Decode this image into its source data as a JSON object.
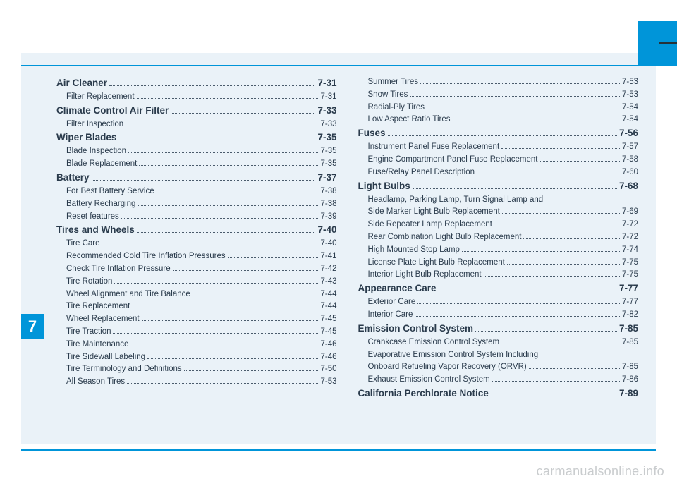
{
  "chapter_number": "7",
  "watermark": "carmanualsonline.info",
  "colors": {
    "accent": "#0095d9",
    "page_bg": "#eaf2f8",
    "text": "#2a3b4c",
    "watermark": "#c9ccce"
  },
  "columns": [
    [
      {
        "type": "section",
        "label": "Air Cleaner",
        "page": "7-31"
      },
      {
        "type": "sub",
        "label": "Filter Replacement",
        "page": "7-31"
      },
      {
        "type": "section",
        "label": "Climate Control Air Filter",
        "page": "7-33"
      },
      {
        "type": "sub",
        "label": "Filter Inspection",
        "page": "7-33"
      },
      {
        "type": "section",
        "label": "Wiper Blades",
        "page": "7-35"
      },
      {
        "type": "sub",
        "label": "Blade Inspection",
        "page": "7-35"
      },
      {
        "type": "sub",
        "label": "Blade Replacement",
        "page": "7-35"
      },
      {
        "type": "section",
        "label": "Battery",
        "page": "7-37"
      },
      {
        "type": "sub",
        "label": "For Best Battery Service",
        "page": "7-38"
      },
      {
        "type": "sub",
        "label": "Battery Recharging",
        "page": "7-38"
      },
      {
        "type": "sub",
        "label": "Reset features",
        "page": "7-39"
      },
      {
        "type": "section",
        "label": "Tires and Wheels",
        "page": "7-40"
      },
      {
        "type": "sub",
        "label": "Tire Care",
        "page": "7-40"
      },
      {
        "type": "sub",
        "label": "Recommended Cold Tire Inflation Pressures",
        "page": "7-41"
      },
      {
        "type": "sub",
        "label": "Check Tire Inflation Pressure",
        "page": "7-42"
      },
      {
        "type": "sub",
        "label": "Tire Rotation",
        "page": "7-43"
      },
      {
        "type": "sub",
        "label": "Wheel Alignment and Tire Balance",
        "page": "7-44"
      },
      {
        "type": "sub",
        "label": "Tire Replacement",
        "page": "7-44"
      },
      {
        "type": "sub",
        "label": "Wheel Replacement",
        "page": "7-45"
      },
      {
        "type": "sub",
        "label": "Tire Traction",
        "page": "7-45"
      },
      {
        "type": "sub",
        "label": "Tire Maintenance",
        "page": "7-46"
      },
      {
        "type": "sub",
        "label": "Tire Sidewall Labeling",
        "page": "7-46"
      },
      {
        "type": "sub",
        "label": "Tire Terminology and Definitions",
        "page": "7-50"
      },
      {
        "type": "sub",
        "label": "All Season Tires",
        "page": "7-53"
      }
    ],
    [
      {
        "type": "sub",
        "label": "Summer Tires",
        "page": "7-53"
      },
      {
        "type": "sub",
        "label": "Snow Tires",
        "page": "7-53"
      },
      {
        "type": "sub",
        "label": "Radial-Ply Tires",
        "page": "7-54"
      },
      {
        "type": "sub",
        "label": "Low Aspect Ratio Tires",
        "page": "7-54"
      },
      {
        "type": "section",
        "label": "Fuses",
        "page": "7-56"
      },
      {
        "type": "sub",
        "label": "Instrument Panel Fuse Replacement",
        "page": "7-57"
      },
      {
        "type": "sub",
        "label": "Engine Compartment Panel Fuse Replacement",
        "page": "7-58"
      },
      {
        "type": "sub",
        "label": "Fuse/Relay Panel Description",
        "page": "7-60"
      },
      {
        "type": "section",
        "label": "Light Bulbs",
        "page": "7-68"
      },
      {
        "type": "sub",
        "label": "Headlamp, Parking Lamp, Turn Signal Lamp and",
        "page": ""
      },
      {
        "type": "sub",
        "label": "Side Marker Light Bulb Replacement",
        "page": "7-69"
      },
      {
        "type": "sub",
        "label": "Side Repeater Lamp Replacement",
        "page": "7-72"
      },
      {
        "type": "sub",
        "label": "Rear Combination Light Bulb Replacement",
        "page": "7-72"
      },
      {
        "type": "sub",
        "label": "High Mounted Stop Lamp",
        "page": "7-74"
      },
      {
        "type": "sub",
        "label": "License Plate Light Bulb Replacement",
        "page": "7-75"
      },
      {
        "type": "sub",
        "label": "Interior Light Bulb Replacement",
        "page": "7-75"
      },
      {
        "type": "section",
        "label": "Appearance Care",
        "page": "7-77"
      },
      {
        "type": "sub",
        "label": "Exterior Care",
        "page": "7-77"
      },
      {
        "type": "sub",
        "label": "Interior Care",
        "page": "7-82"
      },
      {
        "type": "section",
        "label": "Emission Control System",
        "page": "7-85"
      },
      {
        "type": "sub",
        "label": "Crankcase Emission Control System",
        "page": "7-85"
      },
      {
        "type": "sub",
        "label": "Evaporative Emission Control System Including",
        "page": ""
      },
      {
        "type": "sub",
        "label": "Onboard Refueling Vapor Recovery (ORVR)",
        "page": "7-85"
      },
      {
        "type": "sub",
        "label": "Exhaust Emission Control System",
        "page": "7-86"
      },
      {
        "type": "section",
        "label": "California Perchlorate Notice",
        "page": "7-89"
      }
    ]
  ]
}
